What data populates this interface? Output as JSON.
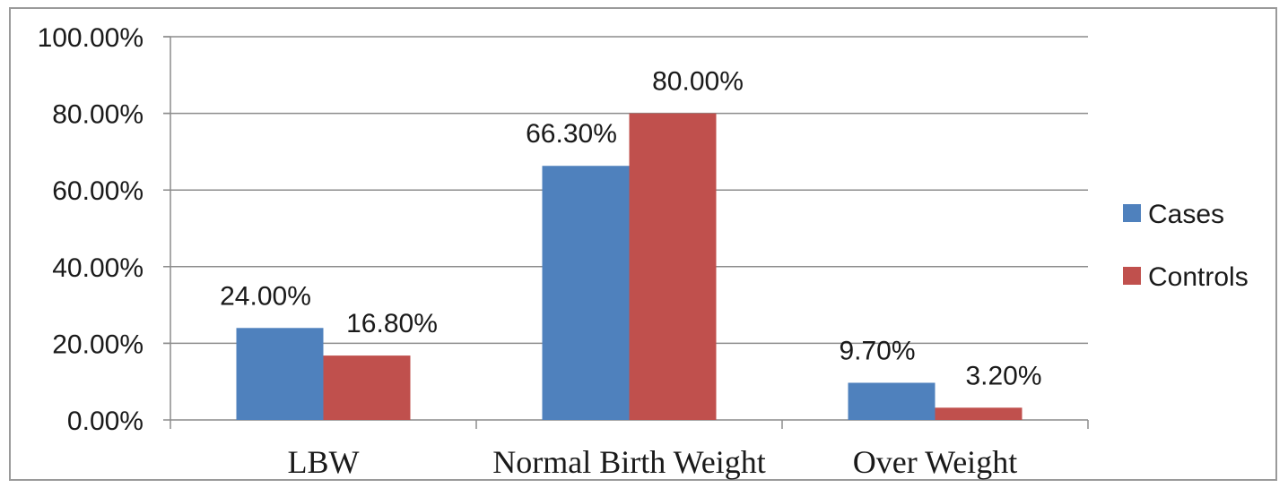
{
  "chart_data": {
    "type": "bar",
    "categories": [
      "LBW",
      "Normal Birth Weight",
      "Over Weight"
    ],
    "series": [
      {
        "name": "Cases",
        "values": [
          24.0,
          66.3,
          9.7
        ],
        "labels": [
          "24.00%",
          "66.30%",
          "9.70%"
        ],
        "color": "#4f81bd"
      },
      {
        "name": "Controls",
        "values": [
          16.8,
          80.0,
          3.2
        ],
        "labels": [
          "16.80%",
          "80.00%",
          "3.20%"
        ],
        "color": "#c0504d"
      }
    ],
    "yticks": [
      "0.00%",
      "20.00%",
      "40.00%",
      "60.00%",
      "80.00%",
      "100.00%"
    ],
    "ylim": [
      0,
      100
    ],
    "grid": true,
    "legend": "right",
    "title": "",
    "xlabel": "",
    "ylabel": ""
  }
}
